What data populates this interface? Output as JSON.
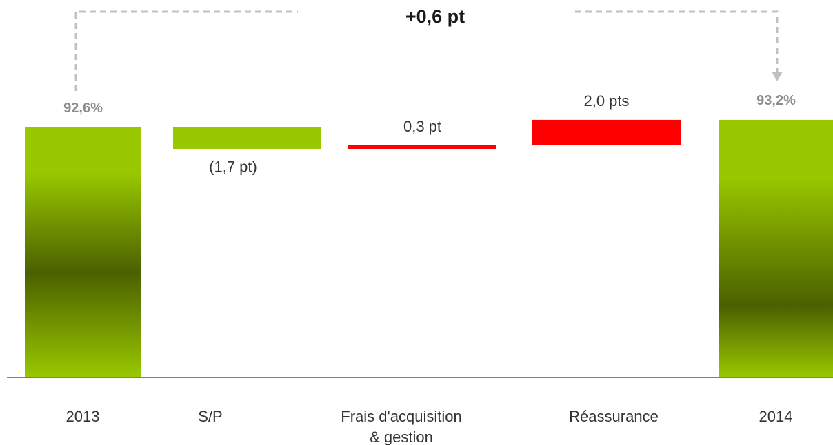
{
  "chart_data": {
    "type": "bar",
    "subtype": "waterfall",
    "title": "",
    "total_change_label": "+0,6 pt",
    "categories": [
      {
        "label_lines": [
          "2013"
        ],
        "kind": "total",
        "value": 92.6,
        "value_label": "92,6%"
      },
      {
        "label_lines": [
          "S/P"
        ],
        "kind": "delta",
        "value": -1.7,
        "value_label": "(1,7 pt)"
      },
      {
        "label_lines": [
          "Frais d'acquisition",
          "& gestion"
        ],
        "kind": "delta",
        "value": 0.3,
        "value_label": "0,3 pt"
      },
      {
        "label_lines": [
          "Réassurance"
        ],
        "kind": "delta",
        "value": 2.0,
        "value_label": "2,0 pts"
      },
      {
        "label_lines": [
          "2014"
        ],
        "kind": "total",
        "value": 93.2,
        "value_label": "93,2%"
      }
    ],
    "colors": {
      "total_light": "#99c800",
      "total_dark": "#4b6000",
      "decrease": "#99c800",
      "increase": "#ff0000",
      "baseline": "#808080",
      "connector": "#c0c0c0"
    },
    "grid": false,
    "legend": "none"
  }
}
